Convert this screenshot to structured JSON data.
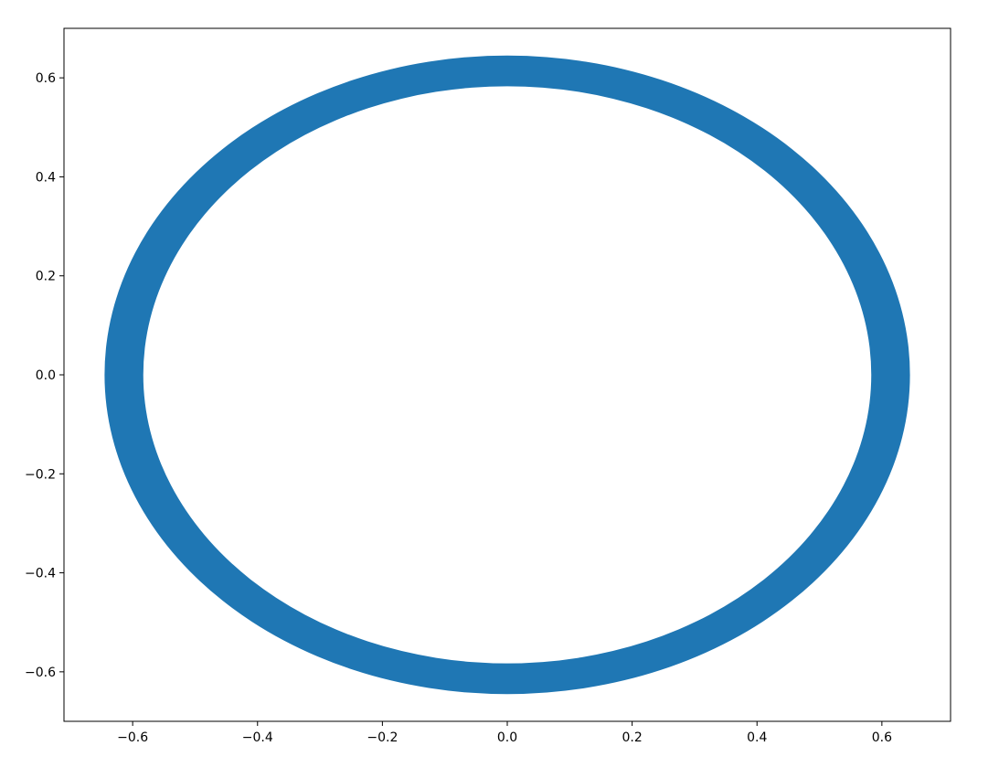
{
  "chart_data": {
    "type": "line",
    "title": "",
    "xlabel": "",
    "ylabel": "",
    "xlim": [
      -0.71,
      0.71
    ],
    "ylim": [
      -0.7,
      0.7
    ],
    "grid": false,
    "series_color": "#1f77b4",
    "series": [
      {
        "shape": "ellipse-band",
        "center": [
          0.0,
          0.0
        ],
        "outer_radius_x": 0.645,
        "inner_radius_x": 0.583,
        "outer_radius_y": 0.645,
        "inner_radius_y": 0.583
      }
    ],
    "xticks": [
      -0.6,
      -0.4,
      -0.2,
      0.0,
      0.2,
      0.4,
      0.6
    ],
    "yticks": [
      -0.6,
      -0.4,
      -0.2,
      0.0,
      0.2,
      0.4,
      0.6
    ],
    "xtick_labels": [
      "−0.6",
      "−0.4",
      "−0.2",
      "0.0",
      "0.2",
      "0.4",
      "0.6"
    ],
    "ytick_labels": [
      "−0.6",
      "−0.4",
      "−0.2",
      "0.0",
      "0.2",
      "0.4",
      "0.6"
    ]
  }
}
